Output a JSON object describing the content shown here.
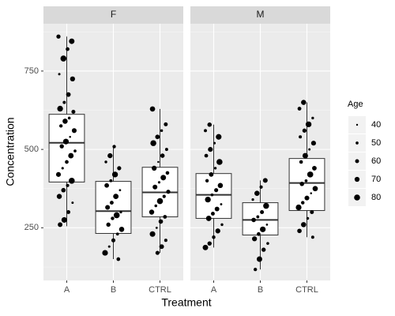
{
  "chart_data": [
    {
      "type": "box",
      "title": "F",
      "xlabel": "Treatment",
      "ylabel": "Concentration",
      "categories": [
        "A",
        "B",
        "CTRL"
      ],
      "ylim": [
        82,
        901
      ],
      "yticks": [
        250,
        500,
        750
      ],
      "minor_yticks": [
        125,
        375,
        625,
        875
      ],
      "grid": true,
      "box_fill": "#ffffff",
      "point_color": "#000000",
      "boxes": [
        {
          "low": 255,
          "q1": 396,
          "median": 521,
          "q3": 612,
          "high": 860
        },
        {
          "low": 150,
          "q1": 232,
          "median": 303,
          "q3": 398,
          "high": 509
        },
        {
          "low": 170,
          "q1": 285,
          "median": 363,
          "q3": 443,
          "high": 629
        }
      ],
      "points": [
        {
          "values": [
            860,
            845,
            820,
            790,
            740,
            725,
            675,
            650,
            630,
            620,
            600,
            590,
            575,
            560,
            540,
            525,
            510,
            495,
            480,
            460,
            440,
            420,
            400,
            385,
            370,
            350,
            330,
            300,
            275,
            260
          ],
          "ages": [
            62,
            75,
            58,
            80,
            45,
            70,
            66,
            52,
            78,
            60,
            49,
            72,
            55,
            68,
            41,
            77,
            63,
            50,
            74,
            58,
            46,
            69,
            80,
            53,
            65,
            71,
            44,
            59,
            76,
            67
          ]
        },
        {
          "values": [
            509,
            480,
            460,
            440,
            420,
            400,
            385,
            370,
            350,
            330,
            315,
            300,
            290,
            280,
            260,
            245,
            230,
            210,
            190,
            170,
            150
          ],
          "ages": [
            55,
            70,
            48,
            62,
            78,
            51,
            66,
            43,
            74,
            59,
            68,
            47,
            80,
            56,
            63,
            72,
            50,
            61,
            45,
            77,
            58
          ]
        },
        {
          "values": [
            629,
            580,
            560,
            540,
            520,
            500,
            480,
            460,
            440,
            425,
            410,
            395,
            380,
            365,
            350,
            335,
            320,
            300,
            285,
            270,
            250,
            230,
            210,
            190,
            170
          ],
          "ages": [
            73,
            60,
            48,
            66,
            79,
            52,
            64,
            41,
            70,
            57,
            75,
            46,
            68,
            62,
            54,
            80,
            49,
            71,
            58,
            65,
            43,
            76,
            53,
            67,
            61
          ]
        }
      ]
    },
    {
      "type": "box",
      "title": "M",
      "categories": [
        "A",
        "B",
        "CTRL"
      ],
      "ylim": [
        82,
        901
      ],
      "yticks": [
        250,
        500,
        750
      ],
      "minor_yticks": [
        125,
        375,
        625,
        875
      ],
      "grid": true,
      "box_fill": "#ffffff",
      "point_color": "#000000",
      "boxes": [
        {
          "low": 187,
          "q1": 280,
          "median": 355,
          "q3": 423,
          "high": 579
        },
        {
          "low": 117,
          "q1": 227,
          "median": 275,
          "q3": 330,
          "high": 401
        },
        {
          "low": 220,
          "q1": 305,
          "median": 393,
          "q3": 471,
          "high": 650
        }
      ],
      "points": [
        {
          "values": [
            579,
            560,
            540,
            520,
            500,
            480,
            460,
            440,
            420,
            400,
            385,
            370,
            355,
            340,
            325,
            310,
            295,
            280,
            260,
            240,
            220,
            200,
            187
          ],
          "ages": [
            64,
            52,
            77,
            45,
            69,
            58,
            80,
            47,
            66,
            55,
            72,
            61,
            50,
            78,
            43,
            67,
            59,
            74,
            48,
            70,
            56,
            63,
            75
          ]
        },
        {
          "values": [
            401,
            380,
            360,
            340,
            320,
            300,
            285,
            275,
            260,
            245,
            230,
            215,
            200,
            180,
            150,
            117
          ],
          "ages": [
            68,
            54,
            72,
            46,
            79,
            60,
            51,
            65,
            42,
            77,
            58,
            70,
            49,
            63,
            75,
            55
          ]
        },
        {
          "values": [
            650,
            630,
            600,
            580,
            560,
            540,
            520,
            500,
            480,
            460,
            440,
            420,
            400,
            390,
            375,
            360,
            345,
            330,
            315,
            300,
            280,
            260,
            240,
            220
          ],
          "ages": [
            71,
            59,
            47,
            78,
            62,
            53,
            69,
            44,
            75,
            57,
            66,
            80,
            50,
            64,
            73,
            41,
            68,
            56,
            77,
            60,
            48,
            72,
            65,
            52
          ]
        }
      ],
      "size_legend": {
        "title": "Age",
        "values": [
          40,
          50,
          60,
          70,
          80
        ]
      }
    }
  ]
}
